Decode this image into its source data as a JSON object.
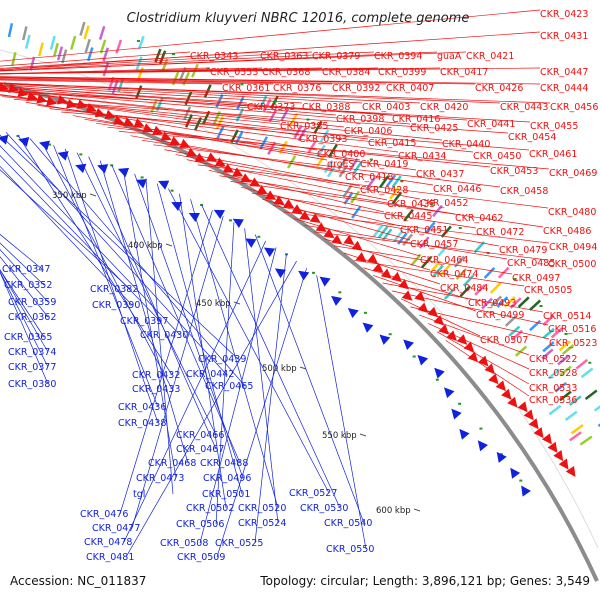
{
  "title": "Clostridium kluyveri NBRC 12016, complete genome",
  "accession": "Accession: NC_011837",
  "summary": "Topology: circular; Length: 3,896,121 bp; Genes: 3,549",
  "colors": {
    "forward": "#ee1111",
    "reverse": "#1122dd",
    "backbone": "#8c8c8c",
    "feature_green": "#229922"
  },
  "tick_labels": [
    "350 kbp",
    "400 kbp",
    "450 kbp",
    "500 kbp",
    "550 kbp",
    "600 kbp"
  ],
  "forward_genes": [
    "CKR_0423",
    "CKR_0431",
    "CKR_0343",
    "CKR_0363",
    "CKR_0379",
    "CKR_0394",
    "guaA",
    "CKR_0421",
    "CKR_0353",
    "CKR_0368",
    "CKR_0384",
    "CKR_0399",
    "CKR_0417",
    "CKR_0447",
    "CKR_0361",
    "CKR_0376",
    "CKR_0392",
    "CKR_0407",
    "CKR_0426",
    "CKR_0444",
    "CKR_0373",
    "CKR_0388",
    "CKR_0403",
    "CKR_0420",
    "CKR_0398",
    "CKR_0416",
    "CKR_0443",
    "CKR_0456",
    "CKR_0385",
    "CKR_0406",
    "CKR_0425",
    "CKR_0441",
    "CKR_0455",
    "CKR_0393",
    "CKR_0415",
    "CKR_0440",
    "CKR_0454",
    "CKR_0400",
    "CKR_0434",
    "CKR_0450",
    "CKR_0461",
    "groES",
    "CKR_0419",
    "CKR_0437",
    "CKR_0453",
    "CKR_0469",
    "CKR_0418",
    "CKR_0446",
    "CKR_0458",
    "CKR_0428",
    "CKR_0452",
    "CKR_0435",
    "CKR_0480",
    "CKR_0445",
    "CKR_0462",
    "CKR_0486",
    "CKR_0451",
    "CKR_0472",
    "CKR_0457",
    "CKR_0479",
    "CKR_0494",
    "CKR_0464",
    "CKR_0485",
    "CKR_0500",
    "CKR_0474",
    "CKR_0497",
    "CKR_0484",
    "CKR_0505",
    "CKR_0493",
    "CKR_0499",
    "CKR_0514",
    "CKR_0516",
    "CKR_0507",
    "CKR_0523",
    "CKR_0522",
    "CKR_0528",
    "CKR_0533",
    "CKR_0536"
  ],
  "reverse_genes": [
    "CKR_0347",
    "CKR_0352",
    "CKR_0359",
    "CKR_0362",
    "CKR_0365",
    "CKR_0374",
    "CKR_0377",
    "CKR_0380",
    "CKR_0382",
    "CKR_0390",
    "CKR_0397",
    "CKR_0430",
    "CKR_0439",
    "CKR_0442",
    "CKR_0432",
    "CKR_0465",
    "CKR_0433",
    "CKR_0436",
    "CKR_0438",
    "CKR_0466",
    "CKR_0467",
    "CKR_0468",
    "CKR_0488",
    "CKR_0473",
    "CKR_0496",
    "tgl",
    "CKR_0501",
    "CKR_0527",
    "CKR_0502",
    "CKR_0520",
    "CKR_0530",
    "CKR_0476",
    "CKR_0477",
    "CKR_0506",
    "CKR_0524",
    "CKR_0540",
    "CKR_0478",
    "CKR_0508",
    "CKR_0525",
    "CKR_0481",
    "CKR_0509",
    "CKR_0550"
  ]
}
